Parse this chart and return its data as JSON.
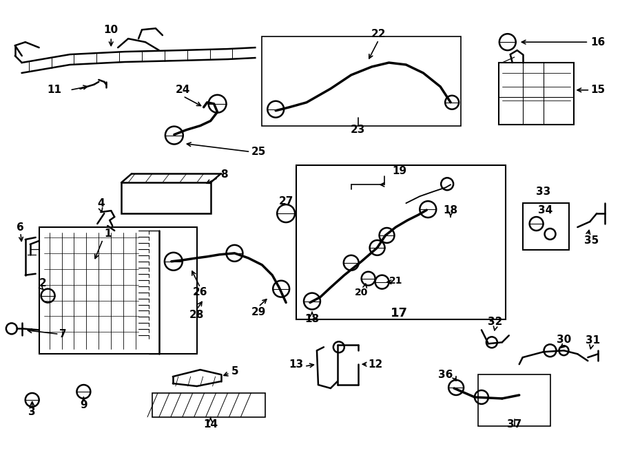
{
  "bg": "#ffffff",
  "fw": 9.0,
  "fh": 6.61,
  "dpi": 100,
  "lw_main": 1.8,
  "lw_thin": 0.9,
  "lw_thick": 2.5,
  "fs_label": 11,
  "fs_small": 9
}
